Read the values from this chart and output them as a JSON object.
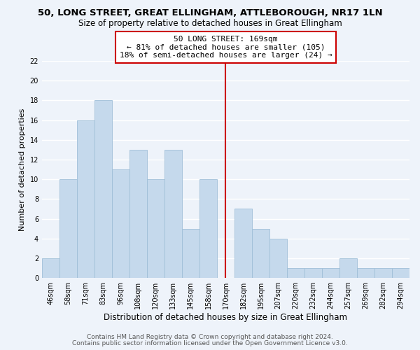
{
  "title": "50, LONG STREET, GREAT ELLINGHAM, ATTLEBOROUGH, NR17 1LN",
  "subtitle": "Size of property relative to detached houses in Great Ellingham",
  "xlabel": "Distribution of detached houses by size in Great Ellingham",
  "ylabel": "Number of detached properties",
  "bar_color": "#c5d9ec",
  "bar_edge_color": "#a0bfd8",
  "categories": [
    "46sqm",
    "58sqm",
    "71sqm",
    "83sqm",
    "96sqm",
    "108sqm",
    "120sqm",
    "133sqm",
    "145sqm",
    "158sqm",
    "170sqm",
    "182sqm",
    "195sqm",
    "207sqm",
    "220sqm",
    "232sqm",
    "244sqm",
    "257sqm",
    "269sqm",
    "282sqm",
    "294sqm"
  ],
  "values": [
    2,
    10,
    16,
    18,
    11,
    13,
    10,
    13,
    5,
    10,
    0,
    7,
    5,
    4,
    1,
    1,
    1,
    2,
    1,
    1,
    1
  ],
  "ylim": [
    0,
    22
  ],
  "yticks": [
    0,
    2,
    4,
    6,
    8,
    10,
    12,
    14,
    16,
    18,
    20,
    22
  ],
  "vline_x": 10,
  "vline_color": "#cc0000",
  "annotation_line1": "50 LONG STREET: 169sqm",
  "annotation_line2": "← 81% of detached houses are smaller (105)",
  "annotation_line3": "18% of semi-detached houses are larger (24) →",
  "footer1": "Contains HM Land Registry data © Crown copyright and database right 2024.",
  "footer2": "Contains public sector information licensed under the Open Government Licence v3.0.",
  "background_color": "#eef3fa",
  "grid_color": "#ffffff",
  "title_fontsize": 9.5,
  "subtitle_fontsize": 8.5,
  "xlabel_fontsize": 8.5,
  "ylabel_fontsize": 8,
  "tick_fontsize": 7,
  "annotation_fontsize": 8,
  "footer_fontsize": 6.5
}
